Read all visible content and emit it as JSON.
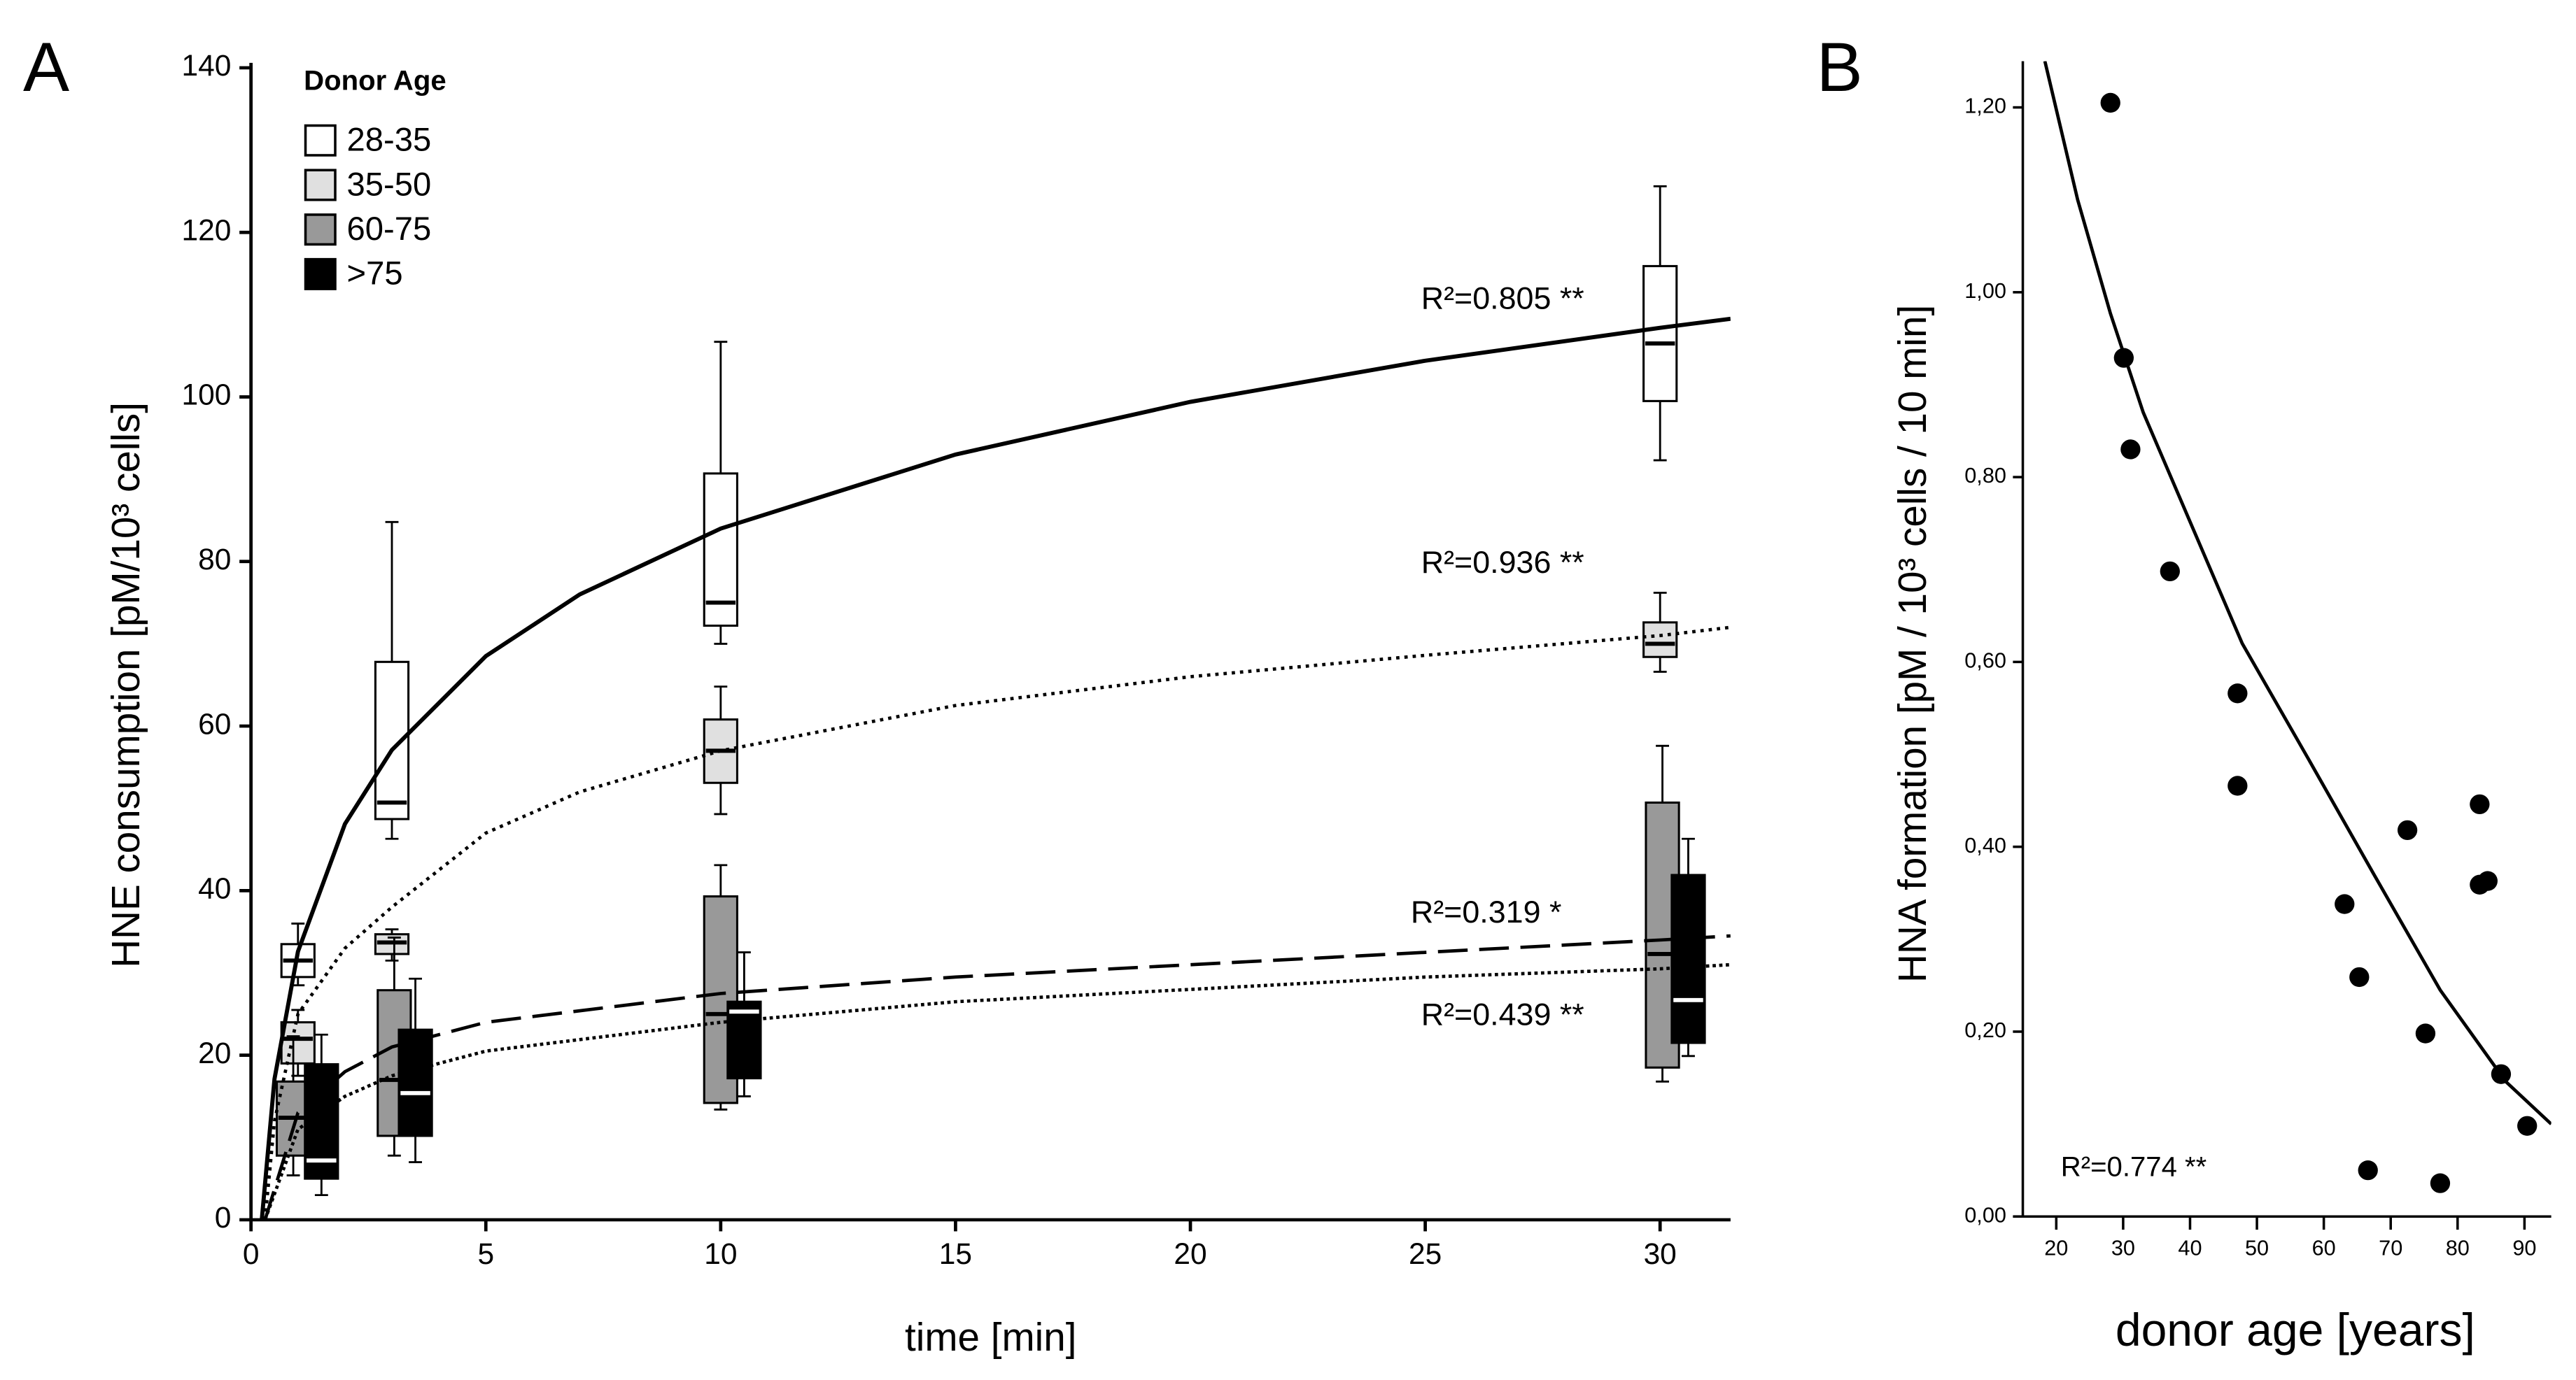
{
  "chart_data": [
    {
      "type": "box",
      "panel": "A",
      "xlabel": "time [min]",
      "ylabel": "HNE consumption [pM/10³ cells]",
      "legend_title": "Donor Age",
      "xlim": [
        0,
        31.5
      ],
      "ylim": [
        0,
        140
      ],
      "xticks": [
        0,
        5,
        10,
        15,
        20,
        25,
        30
      ],
      "yticks": [
        0,
        20,
        40,
        60,
        80,
        100,
        120,
        140
      ],
      "series": [
        {
          "name": "28-35",
          "color": "#ffffff",
          "median_color": "#000000",
          "x": [
            1,
            3,
            10,
            30
          ],
          "whisker_low": [
            28.5,
            46.3,
            70,
            92.3
          ],
          "q1": [
            29.5,
            48.7,
            72.2,
            99.5
          ],
          "median": [
            31.5,
            50.7,
            75,
            106.5
          ],
          "q3": [
            33.5,
            67.8,
            90.7,
            115.9
          ],
          "whisker_high": [
            36,
            84.8,
            106.7,
            125.6
          ]
        },
        {
          "name": "35-50",
          "color": "#e0e0e0",
          "median_color": "#000000",
          "x": [
            1,
            3,
            10,
            30
          ],
          "whisker_low": [
            17.5,
            31.5,
            49.3,
            66.6
          ],
          "q1": [
            19,
            32.3,
            53.1,
            68.4
          ],
          "median": [
            22,
            33.7,
            57,
            70
          ],
          "q3": [
            24,
            34.7,
            60.8,
            72.6
          ],
          "whisker_high": [
            25.5,
            35.3,
            64.8,
            76.2
          ]
        },
        {
          "name": "60-75",
          "color": "#999999",
          "median_color": "#000000",
          "x": [
            0.9,
            3.05,
            10,
            30.05
          ],
          "whisker_low": [
            5.4,
            7.8,
            13.4,
            16.8
          ],
          "q1": [
            7.8,
            10.2,
            14.2,
            18.5
          ],
          "median": [
            12.4,
            17,
            25,
            32.3
          ],
          "q3": [
            16.8,
            27.9,
            39.3,
            50.7
          ],
          "whisker_high": [
            22.3,
            34.3,
            43.1,
            57.6
          ]
        },
        {
          "name": ">75",
          "color": "#000000",
          "median_color": "#ffffff",
          "x": [
            1.5,
            3.5,
            10.5,
            30.6
          ],
          "whisker_low": [
            3,
            7,
            15,
            19.9
          ],
          "q1": [
            5,
            10.2,
            17.2,
            21.5
          ],
          "median": [
            7.2,
            15.4,
            25.3,
            26.7
          ],
          "q3": [
            18.9,
            23.1,
            26.5,
            41.9
          ],
          "whisker_high": [
            22.5,
            29.3,
            32.5,
            46.3
          ]
        }
      ],
      "fits": [
        {
          "label": "R²=0.805 **",
          "dash": "solid",
          "x": [
            0.23,
            0.5,
            1,
            2,
            3,
            5,
            7,
            10,
            15,
            20,
            25,
            30,
            31.5
          ],
          "values": [
            0,
            17.1,
            32.6,
            48.1,
            57.1,
            68.5,
            76,
            84,
            93,
            99.4,
            104.4,
            108.4,
            109.5
          ]
        },
        {
          "label": "R²=0.936 **",
          "dash": "dotted",
          "x": [
            0.3,
            0.5,
            1,
            2,
            3,
            5,
            7,
            10,
            15,
            20,
            25,
            30,
            31.5
          ],
          "values": [
            0,
            12,
            25,
            33,
            38,
            47,
            52,
            57,
            62.5,
            66,
            68.6,
            71,
            72
          ]
        },
        {
          "label": "R²=0.319 *",
          "dash": "dashed",
          "x": [
            0.3,
            1,
            2,
            3,
            5,
            10,
            15,
            20,
            25,
            30,
            31.5
          ],
          "values": [
            0,
            13,
            18,
            21,
            24,
            27.5,
            29.5,
            31,
            32.5,
            34,
            34.5
          ]
        },
        {
          "label": "R²=0.439 **",
          "dash": "fine-dotted",
          "x": [
            0.3,
            1,
            2,
            3,
            5,
            10,
            15,
            20,
            25,
            30,
            31.5
          ],
          "values": [
            0,
            11,
            15,
            17.5,
            20.5,
            24,
            26.5,
            28,
            29.5,
            30.5,
            31
          ]
        }
      ]
    },
    {
      "type": "scatter",
      "panel": "B",
      "xlabel": "donor age [years]",
      "ylabel": "HNA formation [pM / 10³ cells / 10 min]",
      "xlim": [
        15,
        94
      ],
      "ylim": [
        0,
        1.25
      ],
      "xticks": [
        20,
        30,
        40,
        50,
        60,
        70,
        80,
        90
      ],
      "yticks": [
        {
          "value": 0,
          "label": "0,00"
        },
        {
          "value": 0.2,
          "label": "0,20"
        },
        {
          "value": 0.4,
          "label": "0,40"
        },
        {
          "value": 0.6,
          "label": "0,60"
        },
        {
          "value": 0.8,
          "label": "0,80"
        },
        {
          "value": 1.0,
          "label": "1,00"
        },
        {
          "value": 1.2,
          "label": "1,20"
        }
      ],
      "color": "#000000",
      "x": [
        28.1,
        30.1,
        31.1,
        37.0,
        47.1,
        47.1,
        63.1,
        65.3,
        66.6,
        72.5,
        75.2,
        77.4,
        83.3,
        83.3,
        84.5,
        86.5,
        90.4
      ],
      "values": [
        1.205,
        0.929,
        0.83,
        0.698,
        0.566,
        0.466,
        0.338,
        0.259,
        0.05,
        0.418,
        0.198,
        0.036,
        0.446,
        0.359,
        0.363,
        0.154,
        0.098
      ],
      "fit": {
        "label": "R²=0.774 **",
        "x": [
          18.3,
          23.2,
          28.1,
          33,
          40.4,
          47.8,
          57.7,
          67.5,
          77.4,
          87.2,
          94
        ],
        "values": [
          1.25,
          1.1,
          0.977,
          0.87,
          0.745,
          0.62,
          0.495,
          0.37,
          0.245,
          0.146,
          0.1
        ]
      }
    }
  ]
}
